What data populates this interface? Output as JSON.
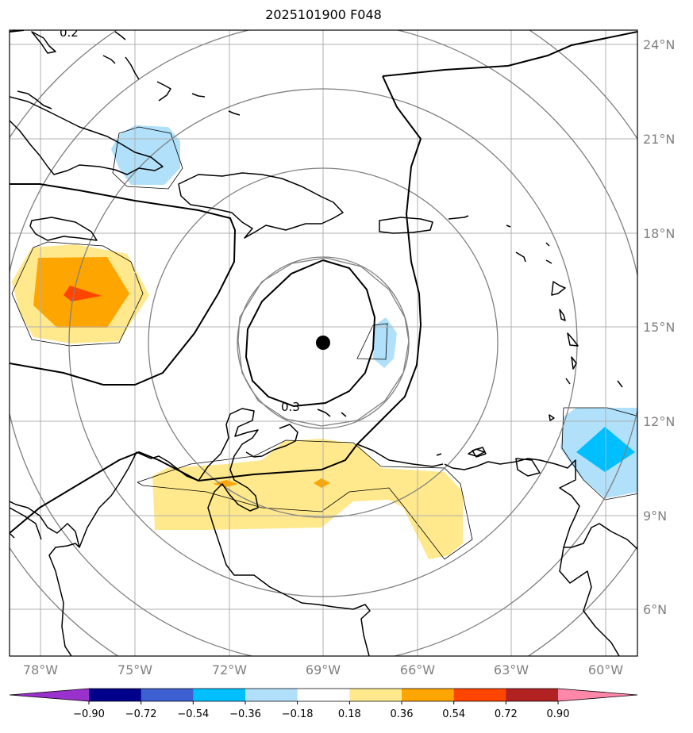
{
  "title": "2025101900 F048",
  "map": {
    "lon_labels": [
      "78°W",
      "75°W",
      "72°W",
      "69°W",
      "66°W",
      "63°W",
      "60°W"
    ],
    "lat_labels": [
      "24°N",
      "21°N",
      "18°N",
      "15°N",
      "12°N",
      "9°N",
      "6°N"
    ],
    "contour_labels": [
      "0.2",
      "0.3"
    ],
    "center_marker": "storm-center"
  },
  "colorbar": {
    "tick_labels": [
      "−0.90",
      "−0.72",
      "−0.54",
      "−0.36",
      "−0.18",
      "0.18",
      "0.36",
      "0.54",
      "0.72",
      "0.90"
    ],
    "colors": [
      "#9932cc",
      "#00008b",
      "#3c5fd2",
      "#00bfff",
      "#b0e0fa",
      "#ffffff",
      "#ffe98c",
      "#ffa500",
      "#ff4500",
      "#b22222",
      "#ff87aa"
    ]
  }
}
